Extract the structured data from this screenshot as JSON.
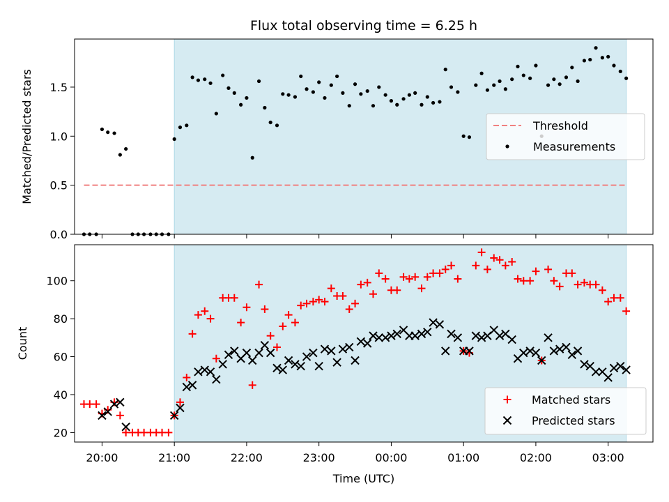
{
  "figure_title": "Flux total observing time = 6.25 h",
  "colors": {
    "shade": "#add8e6",
    "threshold": "#f08080",
    "matched": "#ff0000",
    "predicted": "#000000",
    "measurement": "#000000"
  },
  "chart_data": [
    {
      "type": "scatter",
      "ylabel": "Matched/Predicted stars",
      "xlim": [
        19.62,
        3.62
      ],
      "ylim": [
        0,
        1.99
      ],
      "yticks": [
        {
          "v": 0.0,
          "label": "0.0"
        },
        {
          "v": 0.5,
          "label": "0.5"
        },
        {
          "v": 1.0,
          "label": "1.0"
        },
        {
          "v": 1.5,
          "label": "1.5"
        }
      ],
      "shaded_span": [
        21.0,
        3.25
      ],
      "legend": {
        "position": "right",
        "entries": [
          {
            "label": "Threshold",
            "kind": "dash"
          },
          {
            "label": "Measurements",
            "kind": "dot"
          }
        ]
      },
      "threshold": {
        "name": "Threshold",
        "y": 0.5,
        "x": [
          19.75,
          3.25
        ]
      },
      "series": [
        {
          "name": "Measurements",
          "x": [
            19.75,
            19.83,
            19.92,
            20.0,
            20.08,
            20.17,
            20.25,
            20.33,
            20.42,
            20.5,
            20.58,
            20.67,
            20.75,
            20.83,
            20.92,
            21.0,
            21.08,
            21.17,
            21.25,
            21.33,
            21.42,
            21.5,
            21.58,
            21.67,
            21.75,
            21.83,
            21.92,
            22.0,
            22.08,
            22.17,
            22.25,
            22.33,
            22.42,
            22.5,
            22.58,
            22.67,
            22.75,
            22.83,
            22.92,
            23.0,
            23.08,
            23.17,
            23.25,
            23.33,
            23.42,
            23.5,
            23.58,
            23.67,
            23.75,
            23.83,
            23.92,
            0.0,
            0.08,
            0.17,
            0.25,
            0.33,
            0.42,
            0.5,
            0.58,
            0.67,
            0.75,
            0.83,
            0.92,
            1.0,
            1.08,
            1.17,
            1.25,
            1.33,
            1.42,
            1.5,
            1.58,
            1.67,
            1.75,
            1.83,
            1.92,
            2.0,
            2.08,
            2.17,
            2.25,
            2.33,
            2.42,
            2.5,
            2.58,
            2.67,
            2.75,
            2.83,
            2.92,
            3.0,
            3.08,
            3.17,
            3.25
          ],
          "y": [
            0.0,
            0.0,
            0.0,
            1.07,
            1.04,
            1.03,
            0.81,
            0.87,
            0.0,
            0.0,
            0.0,
            0.0,
            0.0,
            0.0,
            0.0,
            0.97,
            1.09,
            1.11,
            1.6,
            1.57,
            1.58,
            1.54,
            1.23,
            1.62,
            1.49,
            1.44,
            1.32,
            1.39,
            0.78,
            1.56,
            1.29,
            1.14,
            1.11,
            1.43,
            1.42,
            1.4,
            1.61,
            1.48,
            1.45,
            1.55,
            1.39,
            1.52,
            1.61,
            1.44,
            1.31,
            1.53,
            1.43,
            1.46,
            1.31,
            1.5,
            1.42,
            1.36,
            1.32,
            1.38,
            1.42,
            1.44,
            1.32,
            1.4,
            1.34,
            1.35,
            1.68,
            1.5,
            1.45,
            1.0,
            0.99,
            1.52,
            1.64,
            1.47,
            1.52,
            1.56,
            1.48,
            1.58,
            1.71,
            1.62,
            1.59,
            1.72,
            1.0,
            1.52,
            1.58,
            1.53,
            1.6,
            1.7,
            1.56,
            1.77,
            1.78,
            1.9,
            1.8,
            1.81,
            1.72,
            1.66,
            1.59
          ]
        }
      ]
    },
    {
      "type": "scatter",
      "xlabel": "Time (UTC)",
      "ylabel": "Count",
      "xlim": [
        19.62,
        3.62
      ],
      "ylim": [
        15,
        119
      ],
      "yticks": [
        {
          "v": 20,
          "label": "20"
        },
        {
          "v": 40,
          "label": "40"
        },
        {
          "v": 60,
          "label": "60"
        },
        {
          "v": 80,
          "label": "80"
        },
        {
          "v": 100,
          "label": "100"
        }
      ],
      "xticks": [
        {
          "v": 20.0,
          "label": "20:00"
        },
        {
          "v": 21.0,
          "label": "21:00"
        },
        {
          "v": 22.0,
          "label": "22:00"
        },
        {
          "v": 23.0,
          "label": "23:00"
        },
        {
          "v": 0.0,
          "label": "00:00"
        },
        {
          "v": 1.0,
          "label": "01:00"
        },
        {
          "v": 2.0,
          "label": "02:00"
        },
        {
          "v": 3.0,
          "label": "03:00"
        }
      ],
      "shaded_span": [
        21.0,
        3.25
      ],
      "legend": {
        "position": "lower right",
        "entries": [
          {
            "label": "Matched stars",
            "kind": "plus"
          },
          {
            "label": "Predicted stars",
            "kind": "cross"
          }
        ]
      },
      "series": [
        {
          "name": "Matched stars",
          "x": [
            19.75,
            19.83,
            19.92,
            20.0,
            20.08,
            20.17,
            20.25,
            20.33,
            20.42,
            20.5,
            20.58,
            20.67,
            20.75,
            20.83,
            20.92,
            21.0,
            21.08,
            21.17,
            21.25,
            21.33,
            21.42,
            21.5,
            21.58,
            21.67,
            21.75,
            21.83,
            21.92,
            22.0,
            22.08,
            22.17,
            22.25,
            22.33,
            22.42,
            22.5,
            22.58,
            22.67,
            22.75,
            22.83,
            22.92,
            23.0,
            23.08,
            23.17,
            23.25,
            23.33,
            23.42,
            23.5,
            23.58,
            23.67,
            23.75,
            23.83,
            23.92,
            0.0,
            0.08,
            0.17,
            0.25,
            0.33,
            0.42,
            0.5,
            0.58,
            0.67,
            0.75,
            0.83,
            0.92,
            1.0,
            1.08,
            1.17,
            1.25,
            1.33,
            1.42,
            1.5,
            1.58,
            1.67,
            1.75,
            1.83,
            1.92,
            2.0,
            2.08,
            2.17,
            2.25,
            2.33,
            2.42,
            2.5,
            2.58,
            2.67,
            2.75,
            2.83,
            2.92,
            3.0,
            3.08,
            3.17,
            3.25
          ],
          "y": [
            35,
            35,
            35,
            30,
            32,
            36,
            29,
            20,
            20,
            20,
            20,
            20,
            20,
            20,
            20,
            29,
            36,
            49,
            72,
            82,
            84,
            80,
            59,
            91,
            91,
            91,
            78,
            86,
            45,
            98,
            85,
            71,
            65,
            76,
            82,
            78,
            87,
            88,
            89,
            90,
            89,
            96,
            92,
            92,
            85,
            88,
            98,
            99,
            93,
            104,
            101,
            95,
            95,
            102,
            101,
            102,
            96,
            102,
            104,
            104,
            106,
            108,
            101,
            63,
            62,
            108,
            115,
            106,
            112,
            111,
            108,
            110,
            101,
            100,
            100,
            105,
            58,
            106,
            100,
            97,
            104,
            104,
            98,
            99,
            98,
            98,
            95,
            89,
            91,
            91,
            84
          ]
        },
        {
          "name": "Predicted stars",
          "x": [
            19.75,
            19.83,
            19.92,
            20.0,
            20.08,
            20.17,
            20.25,
            20.33,
            20.42,
            20.5,
            20.58,
            20.67,
            20.75,
            20.83,
            20.92,
            21.0,
            21.08,
            21.17,
            21.25,
            21.33,
            21.42,
            21.5,
            21.58,
            21.67,
            21.75,
            21.83,
            21.92,
            22.0,
            22.08,
            22.17,
            22.25,
            22.33,
            22.42,
            22.5,
            22.58,
            22.67,
            22.75,
            22.83,
            22.92,
            23.0,
            23.08,
            23.17,
            23.25,
            23.33,
            23.42,
            23.5,
            23.58,
            23.67,
            23.75,
            23.83,
            23.92,
            0.0,
            0.08,
            0.17,
            0.25,
            0.33,
            0.42,
            0.5,
            0.58,
            0.67,
            0.75,
            0.83,
            0.92,
            1.0,
            1.08,
            1.17,
            1.25,
            1.33,
            1.42,
            1.5,
            1.58,
            1.67,
            1.75,
            1.83,
            1.92,
            2.0,
            2.08,
            2.17,
            2.25,
            2.33,
            2.42,
            2.5,
            2.58,
            2.67,
            2.75,
            2.83,
            2.92,
            3.0,
            3.08,
            3.17,
            3.25
          ],
          "y": [
            null,
            null,
            null,
            29,
            31,
            35,
            36,
            23,
            null,
            null,
            null,
            null,
            null,
            null,
            null,
            29,
            33,
            44,
            45,
            52,
            53,
            52,
            48,
            56,
            61,
            63,
            59,
            62,
            58,
            62,
            66,
            62,
            54,
            53,
            58,
            56,
            55,
            60,
            62,
            55,
            64,
            63,
            57,
            64,
            65,
            58,
            68,
            67,
            71,
            70,
            70,
            71,
            72,
            74,
            71,
            71,
            72,
            73,
            78,
            77,
            63,
            72,
            70,
            63,
            63,
            71,
            70,
            71,
            74,
            71,
            72,
            69,
            59,
            62,
            63,
            62,
            58,
            70,
            63,
            64,
            65,
            61,
            63,
            56,
            55,
            52,
            52,
            49,
            54,
            55,
            53
          ]
        }
      ]
    }
  ]
}
